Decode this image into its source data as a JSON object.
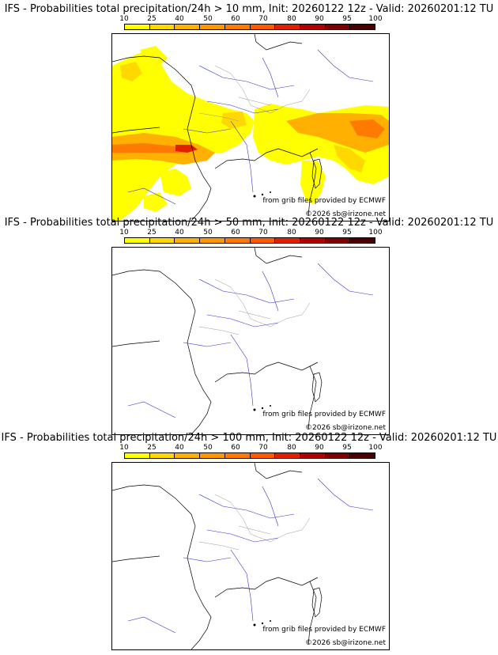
{
  "colorbar": {
    "labels": [
      "10",
      "25",
      "40",
      "50",
      "60",
      "70",
      "80",
      "90",
      "95",
      "100"
    ],
    "colors": [
      "#ffff00",
      "#ffd800",
      "#ffb000",
      "#ff9800",
      "#ff7a00",
      "#ff5a00",
      "#e02000",
      "#b00000",
      "#800000",
      "#4a0000"
    ]
  },
  "panels": [
    {
      "title": "IFS - Probabilities total precipitation/24h > 10 mm, Init: 20260122 12z - Valid: 20260201:12 TU"
    },
    {
      "title": "IFS - Probabilities total precipitation/24h > 50 mm, Init: 20260122 12z - Valid: 20260201:12 TU"
    },
    {
      "title": "IFS - Probabilities total precipitation/24h > 100 mm, Init: 20260122 12z - Valid: 20260201:12 TU"
    }
  ],
  "credits": {
    "source": "from grib files provided by ECMWF",
    "copyright": "©2026 sb@irizone.net"
  }
}
